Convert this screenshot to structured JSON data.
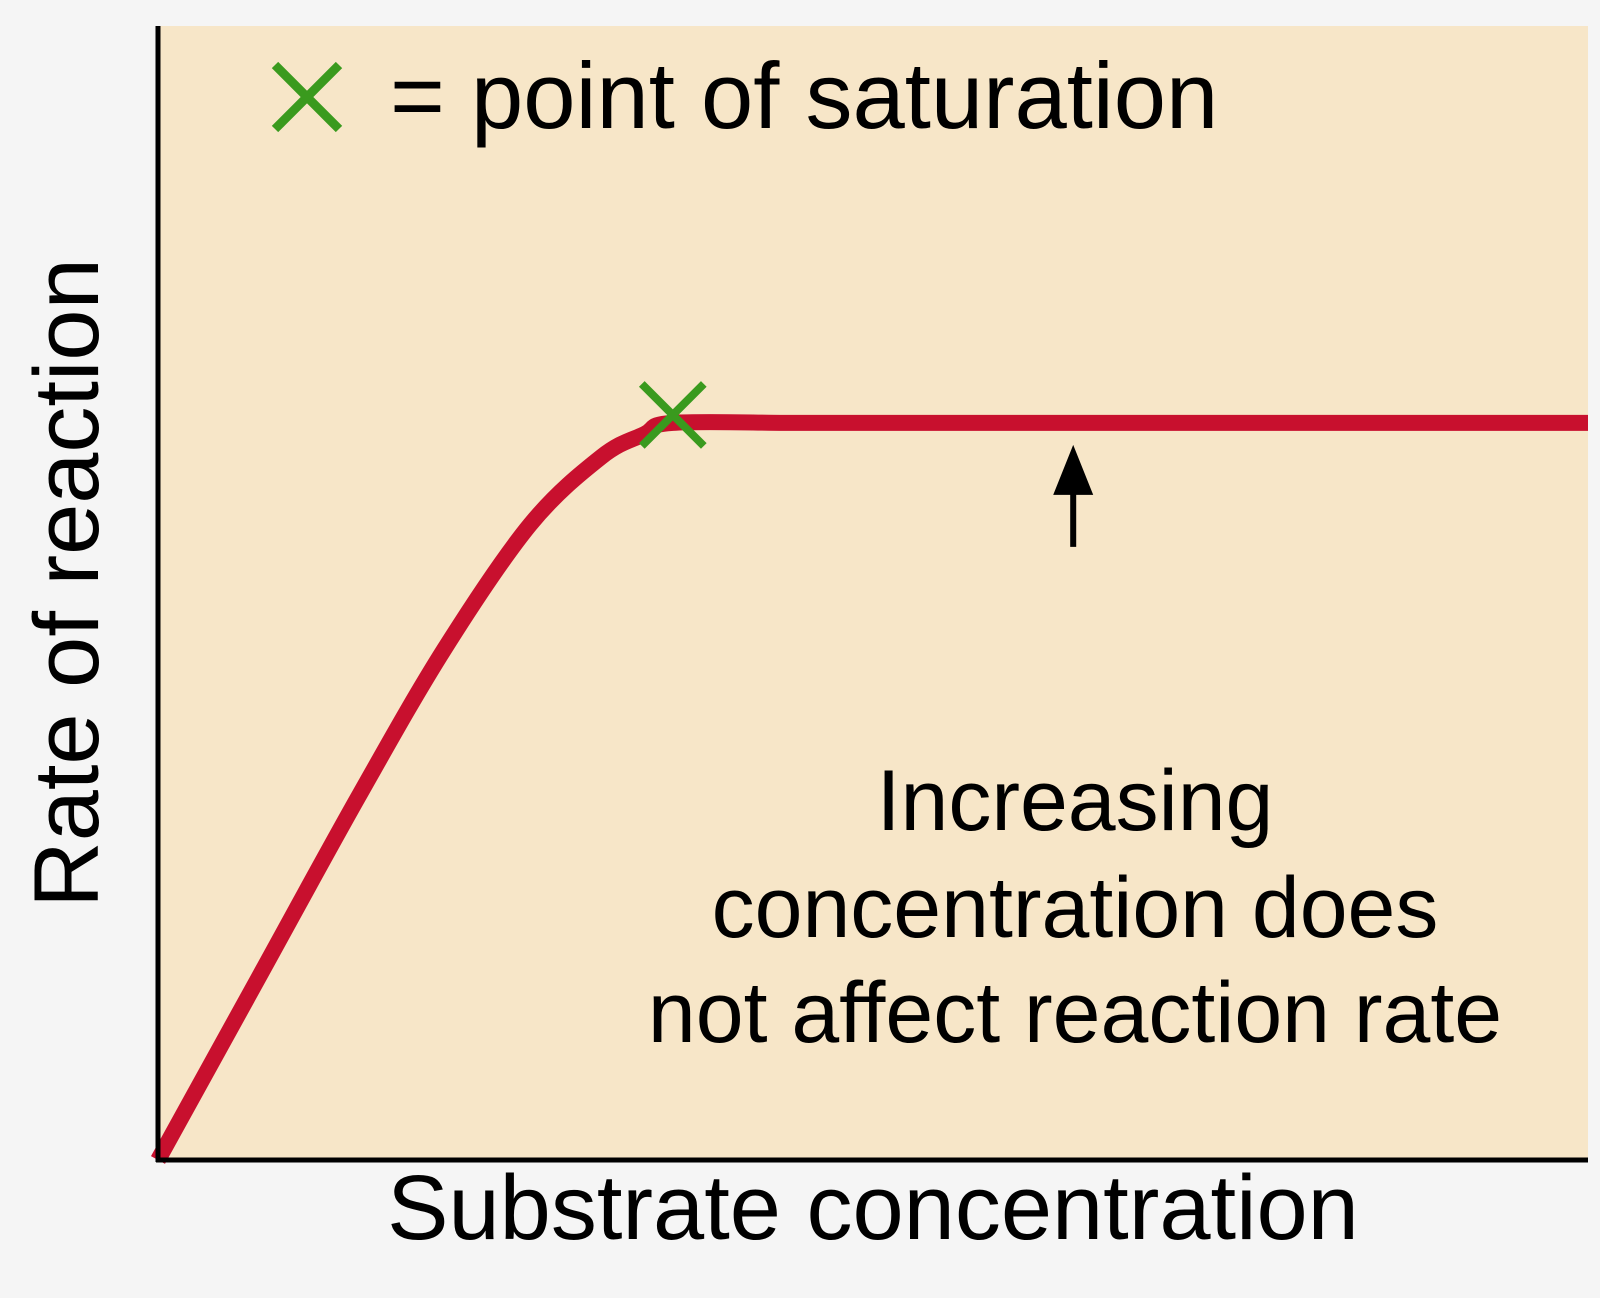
{
  "chart_data": {
    "type": "line",
    "title": "",
    "xlabel": "Substrate concentration",
    "ylabel": "Rate of reaction",
    "xlim": [
      0,
      1
    ],
    "ylim": [
      0,
      1
    ],
    "grid": false,
    "series": [
      {
        "x": [
          0,
          0.07,
          0.14,
          0.2,
          0.26,
          0.31,
          0.34,
          0.36,
          0.45,
          0.55,
          0.65,
          0.75,
          0.85,
          1.0
        ],
        "y": [
          0,
          0.16,
          0.32,
          0.45,
          0.56,
          0.62,
          0.64,
          0.65,
          0.65,
          0.65,
          0.65,
          0.65,
          0.65,
          0.65
        ]
      }
    ],
    "legend": {
      "marker_label": "= point of saturation",
      "placement": "top-left"
    },
    "saturation_point": {
      "x": 0.36,
      "y": 0.65
    },
    "annotation": {
      "lines": [
        "Increasing",
        "concentration does",
        "not affect reaction rate"
      ],
      "target": {
        "x": 0.64,
        "y": 0.65
      }
    },
    "colors": {
      "page_background": "#f5f5f5",
      "plot_background": "#f7e6c8",
      "curve": "#c8102e",
      "marker": "#3a9a1e",
      "axis": "#000000",
      "text": "#000000"
    }
  }
}
